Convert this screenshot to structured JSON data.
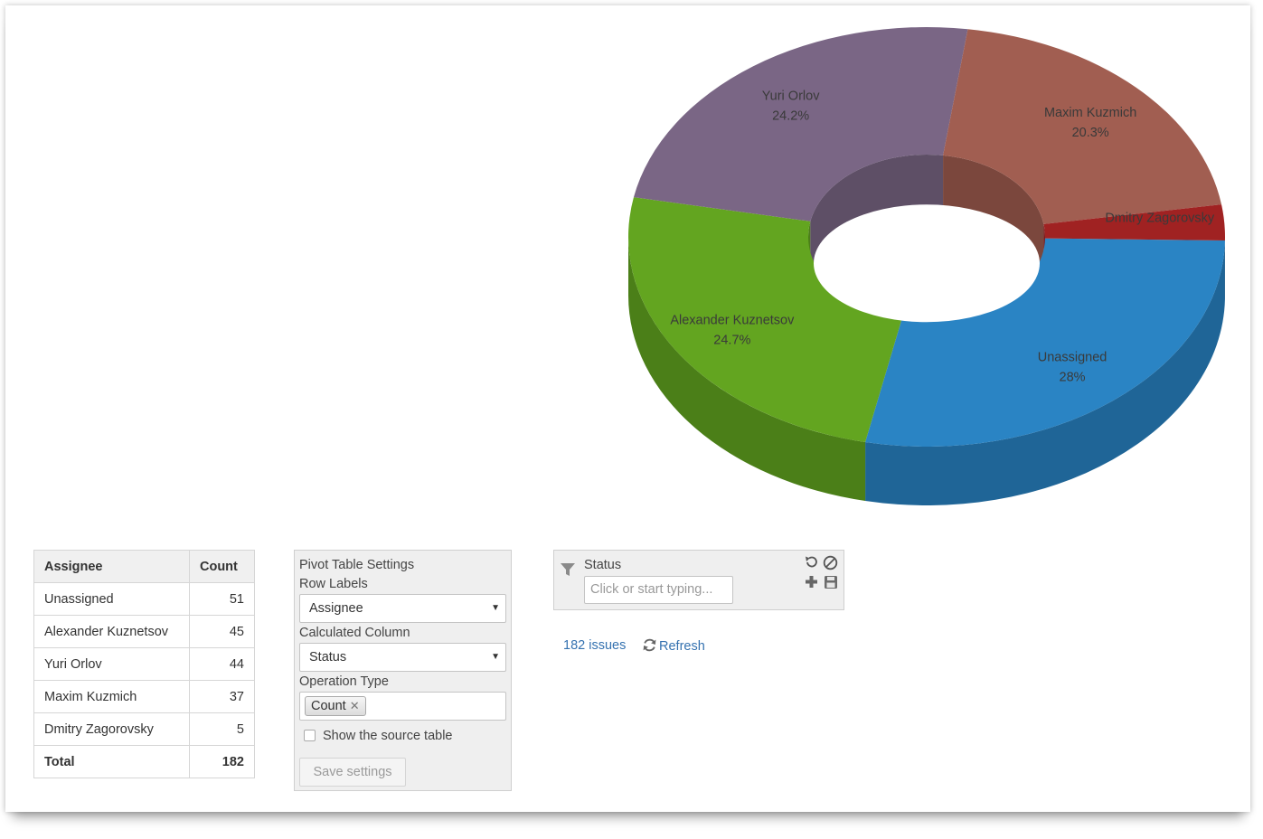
{
  "chart_data": {
    "type": "pie",
    "style": "3d-donut",
    "slices": [
      {
        "label": "Unassigned",
        "value": 51,
        "percent_label": "28%",
        "color": "#2a84c4",
        "side_color": "#1f6597"
      },
      {
        "label": "Alexander Kuznetsov",
        "value": 45,
        "percent_label": "24.7%",
        "color": "#63a520",
        "side_color": "#4b7f18"
      },
      {
        "label": "Yuri Orlov",
        "value": 44,
        "percent_label": "24.2%",
        "color": "#7a6685",
        "side_color": "#5e4f66"
      },
      {
        "label": "Maxim Kuzmich",
        "value": 37,
        "percent_label": "20.3%",
        "color": "#a15e51",
        "side_color": "#7b473d"
      },
      {
        "label": "Dmitry Zagorovsky",
        "value": 5,
        "percent_label": "",
        "color": "#a02222",
        "side_color": "#7a1919"
      }
    ]
  },
  "table": {
    "headers": [
      "Assignee",
      "Count"
    ],
    "rows": [
      {
        "name": "Unassigned",
        "count": "51"
      },
      {
        "name": "Alexander Kuznetsov",
        "count": "45"
      },
      {
        "name": "Yuri Orlov",
        "count": "44"
      },
      {
        "name": "Maxim Kuzmich",
        "count": "37"
      },
      {
        "name": "Dmitry Zagorovsky",
        "count": "5"
      }
    ],
    "total_label": "Total",
    "total_value": "182"
  },
  "settings": {
    "title": "Pivot Table Settings",
    "row_labels_label": "Row Labels",
    "row_labels_value": "Assignee",
    "calc_column_label": "Calculated Column",
    "calc_column_value": "Status",
    "operation_label": "Operation Type",
    "operation_tag": "Count",
    "show_source_label": "Show the source table",
    "show_source_checked": false,
    "save_label": "Save settings"
  },
  "filter": {
    "field_label": "Status",
    "placeholder": "Click or start typing..."
  },
  "footer": {
    "issues_text": "182 issues",
    "refresh_label": "Refresh"
  }
}
